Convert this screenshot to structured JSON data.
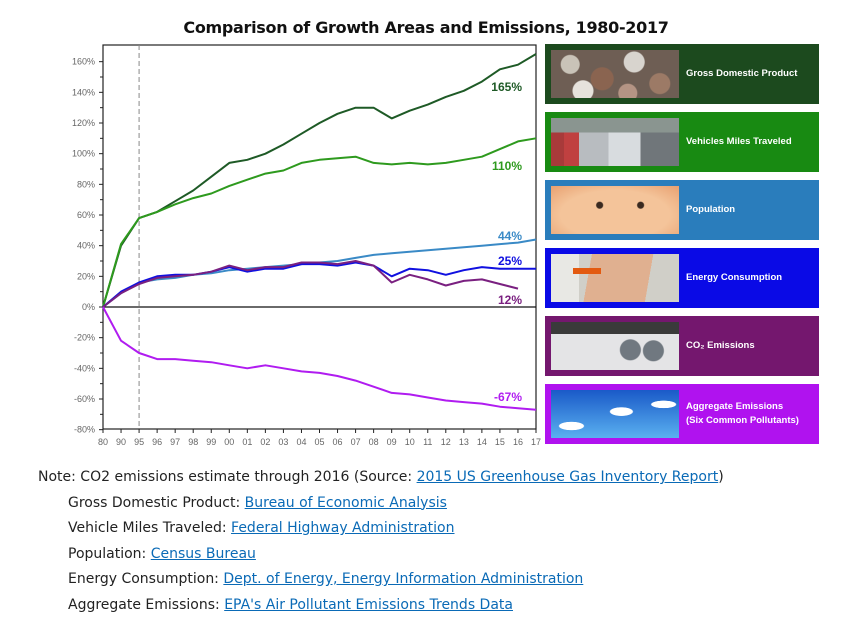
{
  "chart_data": {
    "type": "line",
    "title": "Comparison of Growth Areas and Emissions, 1980-2017",
    "xlabel": "",
    "ylabel": "",
    "x": [
      "80",
      "90",
      "95",
      "96",
      "97",
      "98",
      "99",
      "00",
      "01",
      "02",
      "03",
      "04",
      "05",
      "06",
      "07",
      "08",
      "09",
      "10",
      "11",
      "12",
      "13",
      "14",
      "15",
      "16",
      "17"
    ],
    "ylim": [
      -80,
      170
    ],
    "yticks": [
      -80,
      -60,
      -40,
      -20,
      0,
      20,
      40,
      60,
      80,
      100,
      120,
      140,
      160
    ],
    "ytick_labels": [
      "-80%",
      "-60%",
      "-40%",
      "-20%",
      "0%",
      "20%",
      "40%",
      "60%",
      "80%",
      "100%",
      "120%",
      "140%",
      "160%"
    ],
    "reference_line_x": "95",
    "grid": false,
    "legend_placement": "right",
    "series": [
      {
        "name": "Gross Domestic Product",
        "color": "#1e5a26",
        "end_label": "165%",
        "values": [
          0,
          40,
          58,
          62,
          69,
          76,
          85,
          94,
          96,
          100,
          106,
          113,
          120,
          126,
          130,
          130,
          123,
          128,
          132,
          137,
          141,
          147,
          155,
          158,
          165
        ]
      },
      {
        "name": "Vehicles Miles Traveled",
        "color": "#2e9a1e",
        "end_label": "110%",
        "values": [
          0,
          41,
          58,
          62,
          67,
          71,
          74,
          79,
          83,
          87,
          89,
          94,
          96,
          97,
          98,
          94,
          93,
          94,
          93,
          94,
          96,
          98,
          103,
          108,
          110
        ]
      },
      {
        "name": "Population",
        "color": "#3a8ac6",
        "end_label": "44%",
        "values": [
          0,
          9,
          16,
          18,
          19,
          21,
          22,
          24,
          25,
          26,
          27,
          28,
          29,
          30,
          32,
          34,
          35,
          36,
          37,
          38,
          39,
          40,
          41,
          42,
          44
        ]
      },
      {
        "name": "Energy Consumption",
        "color": "#1010e0",
        "end_label": "25%",
        "values": [
          0,
          10,
          16,
          20,
          21,
          21,
          23,
          26,
          23,
          25,
          25,
          28,
          28,
          27,
          29,
          27,
          20,
          25,
          24,
          21,
          24,
          26,
          25,
          25,
          25
        ]
      },
      {
        "name": "CO2 Emissions",
        "color": "#7a2080",
        "end_label": "12%",
        "values": [
          0,
          9,
          15,
          19,
          20,
          21,
          23,
          27,
          24,
          26,
          26,
          29,
          29,
          28,
          30,
          27,
          16,
          21,
          18,
          14,
          17,
          18,
          15,
          12,
          null
        ]
      },
      {
        "name": "Aggregate Emissions (Six Common Pollutants)",
        "color": "#b01cf0",
        "end_label": "-67%",
        "values": [
          0,
          -22,
          -30,
          -34,
          -34,
          -35,
          -36,
          -38,
          -40,
          -38,
          -40,
          -42,
          -43,
          -45,
          -48,
          -52,
          -56,
          -57,
          -59,
          -61,
          -62,
          -63,
          -65,
          -66,
          -67
        ]
      }
    ]
  },
  "legend": [
    {
      "label": "Gross Domestic Product",
      "bg": "#1c4a1e",
      "image": "coins-image"
    },
    {
      "label": "Vehicles Miles Traveled",
      "bg": "#188a12",
      "image": "traffic-image"
    },
    {
      "label": "Population",
      "bg": "#2a7dbc",
      "image": "baby-image"
    },
    {
      "label": "Energy Consumption",
      "bg": "#0a0ae6",
      "image": "plug-image"
    },
    {
      "label": "CO₂ Emissions",
      "bg": "#74176e",
      "image": "exhaust-image"
    },
    {
      "label": "Aggregate Emissions (Six Common Pollutants)",
      "label_line1": "Aggregate Emissions",
      "label_line2": "(Six Common Pollutants)",
      "bg": "#b012ef",
      "image": "smokestacks-image"
    }
  ],
  "notes": {
    "note_prefix": "Note: CO2 emissions estimate through 2016 (Source: ",
    "note_link": "2015 US Greenhouse Gas Inventory Report",
    "note_suffix": ")",
    "sources": [
      {
        "label": "Gross Domestic Product: ",
        "link": "Bureau of Economic Analysis"
      },
      {
        "label": "Vehicle Miles Traveled: ",
        "link": "Federal Highway Administration"
      },
      {
        "label": "Population: ",
        "link": "Census Bureau"
      },
      {
        "label": "Energy Consumption: ",
        "link": "Dept. of Energy, Energy Information Administration"
      },
      {
        "label": "Aggregate Emissions: ",
        "link": "EPA's Air Pollutant Emissions Trends Data"
      }
    ]
  }
}
